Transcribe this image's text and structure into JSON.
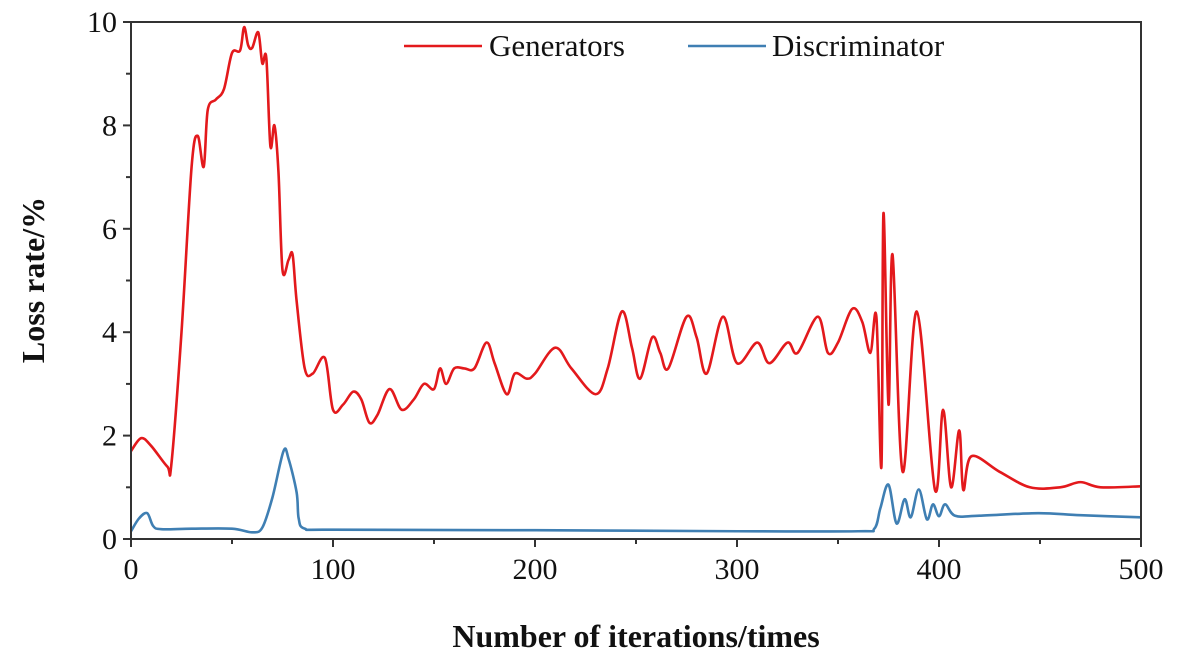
{
  "chart_data": {
    "type": "line",
    "title": "",
    "xlabel": "Number of iterations/times",
    "ylabel": "Loss rate/%",
    "xlim": [
      0,
      500
    ],
    "ylim": [
      0,
      10
    ],
    "xticks": [
      0,
      100,
      200,
      300,
      400,
      500
    ],
    "yticks": [
      0,
      2,
      4,
      6,
      8,
      10
    ],
    "grid": false,
    "legend_placement": "top-right",
    "series": [
      {
        "name": "Generators",
        "color": "#e3191c",
        "points": [
          [
            0,
            1.7
          ],
          [
            5,
            1.95
          ],
          [
            10,
            1.8
          ],
          [
            18,
            1.4
          ],
          [
            20,
            1.45
          ],
          [
            25,
            4.0
          ],
          [
            30,
            7.2
          ],
          [
            33,
            7.8
          ],
          [
            36,
            7.2
          ],
          [
            38,
            8.3
          ],
          [
            42,
            8.5
          ],
          [
            46,
            8.7
          ],
          [
            50,
            9.4
          ],
          [
            54,
            9.45
          ],
          [
            56,
            9.9
          ],
          [
            58,
            9.55
          ],
          [
            60,
            9.5
          ],
          [
            63,
            9.8
          ],
          [
            65,
            9.2
          ],
          [
            67,
            9.3
          ],
          [
            69,
            7.6
          ],
          [
            71,
            8.0
          ],
          [
            73,
            7.1
          ],
          [
            75,
            5.2
          ],
          [
            78,
            5.4
          ],
          [
            80,
            5.5
          ],
          [
            82,
            4.6
          ],
          [
            86,
            3.3
          ],
          [
            90,
            3.2
          ],
          [
            96,
            3.5
          ],
          [
            100,
            2.5
          ],
          [
            105,
            2.6
          ],
          [
            110,
            2.85
          ],
          [
            114,
            2.7
          ],
          [
            118,
            2.25
          ],
          [
            122,
            2.4
          ],
          [
            128,
            2.9
          ],
          [
            134,
            2.5
          ],
          [
            140,
            2.7
          ],
          [
            145,
            3.0
          ],
          [
            150,
            2.9
          ],
          [
            153,
            3.3
          ],
          [
            156,
            3.0
          ],
          [
            160,
            3.3
          ],
          [
            165,
            3.3
          ],
          [
            170,
            3.3
          ],
          [
            176,
            3.8
          ],
          [
            180,
            3.4
          ],
          [
            186,
            2.8
          ],
          [
            190,
            3.2
          ],
          [
            196,
            3.1
          ],
          [
            200,
            3.2
          ],
          [
            210,
            3.7
          ],
          [
            218,
            3.3
          ],
          [
            230,
            2.8
          ],
          [
            236,
            3.3
          ],
          [
            243,
            4.4
          ],
          [
            248,
            3.7
          ],
          [
            252,
            3.1
          ],
          [
            258,
            3.9
          ],
          [
            262,
            3.6
          ],
          [
            266,
            3.3
          ],
          [
            275,
            4.3
          ],
          [
            280,
            3.9
          ],
          [
            285,
            3.2
          ],
          [
            293,
            4.3
          ],
          [
            300,
            3.4
          ],
          [
            310,
            3.8
          ],
          [
            316,
            3.4
          ],
          [
            325,
            3.8
          ],
          [
            330,
            3.6
          ],
          [
            340,
            4.3
          ],
          [
            345,
            3.6
          ],
          [
            350,
            3.8
          ],
          [
            357,
            4.45
          ],
          [
            362,
            4.2
          ],
          [
            366,
            3.6
          ],
          [
            369,
            4.3
          ],
          [
            371.5,
            1.4
          ],
          [
            372.5,
            6.3
          ],
          [
            375,
            2.6
          ],
          [
            377,
            5.5
          ],
          [
            382,
            1.3
          ],
          [
            389,
            4.4
          ],
          [
            398,
            0.95
          ],
          [
            402,
            2.5
          ],
          [
            406,
            1.0
          ],
          [
            410,
            2.1
          ],
          [
            412,
            0.95
          ],
          [
            416,
            1.6
          ],
          [
            430,
            1.3
          ],
          [
            445,
            1.0
          ],
          [
            460,
            1.0
          ],
          [
            470,
            1.1
          ],
          [
            480,
            1.0
          ],
          [
            500,
            1.02
          ]
        ]
      },
      {
        "name": "Discriminator",
        "color": "#3f7fb3",
        "points": [
          [
            0,
            0.15
          ],
          [
            4,
            0.4
          ],
          [
            8,
            0.5
          ],
          [
            11,
            0.25
          ],
          [
            15,
            0.19
          ],
          [
            30,
            0.2
          ],
          [
            50,
            0.2
          ],
          [
            60,
            0.13
          ],
          [
            65,
            0.22
          ],
          [
            70,
            0.8
          ],
          [
            75.5,
            1.7
          ],
          [
            78,
            1.55
          ],
          [
            82,
            0.9
          ],
          [
            83,
            0.4
          ],
          [
            86,
            0.2
          ],
          [
            100,
            0.18
          ],
          [
            200,
            0.17
          ],
          [
            300,
            0.15
          ],
          [
            360,
            0.15
          ],
          [
            368,
            0.2
          ],
          [
            371,
            0.6
          ],
          [
            375,
            1.05
          ],
          [
            379,
            0.3
          ],
          [
            383,
            0.77
          ],
          [
            386,
            0.42
          ],
          [
            390,
            0.96
          ],
          [
            394,
            0.38
          ],
          [
            397,
            0.67
          ],
          [
            400,
            0.44
          ],
          [
            403,
            0.67
          ],
          [
            408,
            0.45
          ],
          [
            420,
            0.45
          ],
          [
            449,
            0.5
          ],
          [
            470,
            0.46
          ],
          [
            500,
            0.42
          ]
        ]
      }
    ]
  }
}
